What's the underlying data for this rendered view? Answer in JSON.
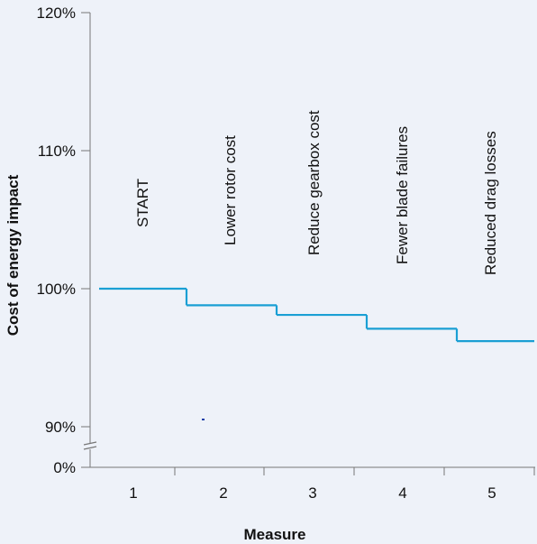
{
  "chart_data": {
    "type": "line",
    "step": true,
    "xlabel": "Measure",
    "ylabel": "Cost of energy impact",
    "x_ticks": [
      "1",
      "2",
      "3",
      "4",
      "5"
    ],
    "y_ticks": [
      "120%",
      "110%",
      "100%",
      "90%",
      "0%"
    ],
    "axis_break": "between 0% and 90%",
    "annotations": [
      "START",
      "Lower rotor cost",
      "Reduce gearbox cost",
      "Fewer blade failures",
      "Reduced drag losses"
    ],
    "series": [
      {
        "x": [
          1,
          2,
          3,
          4,
          5
        ],
        "values": [
          100.0,
          98.8,
          98.1,
          97.1,
          96.2
        ]
      }
    ],
    "ylim": [
      88,
      120
    ],
    "grid": false,
    "colors": {
      "line": "#1a9fd4",
      "axis": "#777777",
      "background": "#eef2f9",
      "stray_mark": "#1a3fa8"
    }
  }
}
